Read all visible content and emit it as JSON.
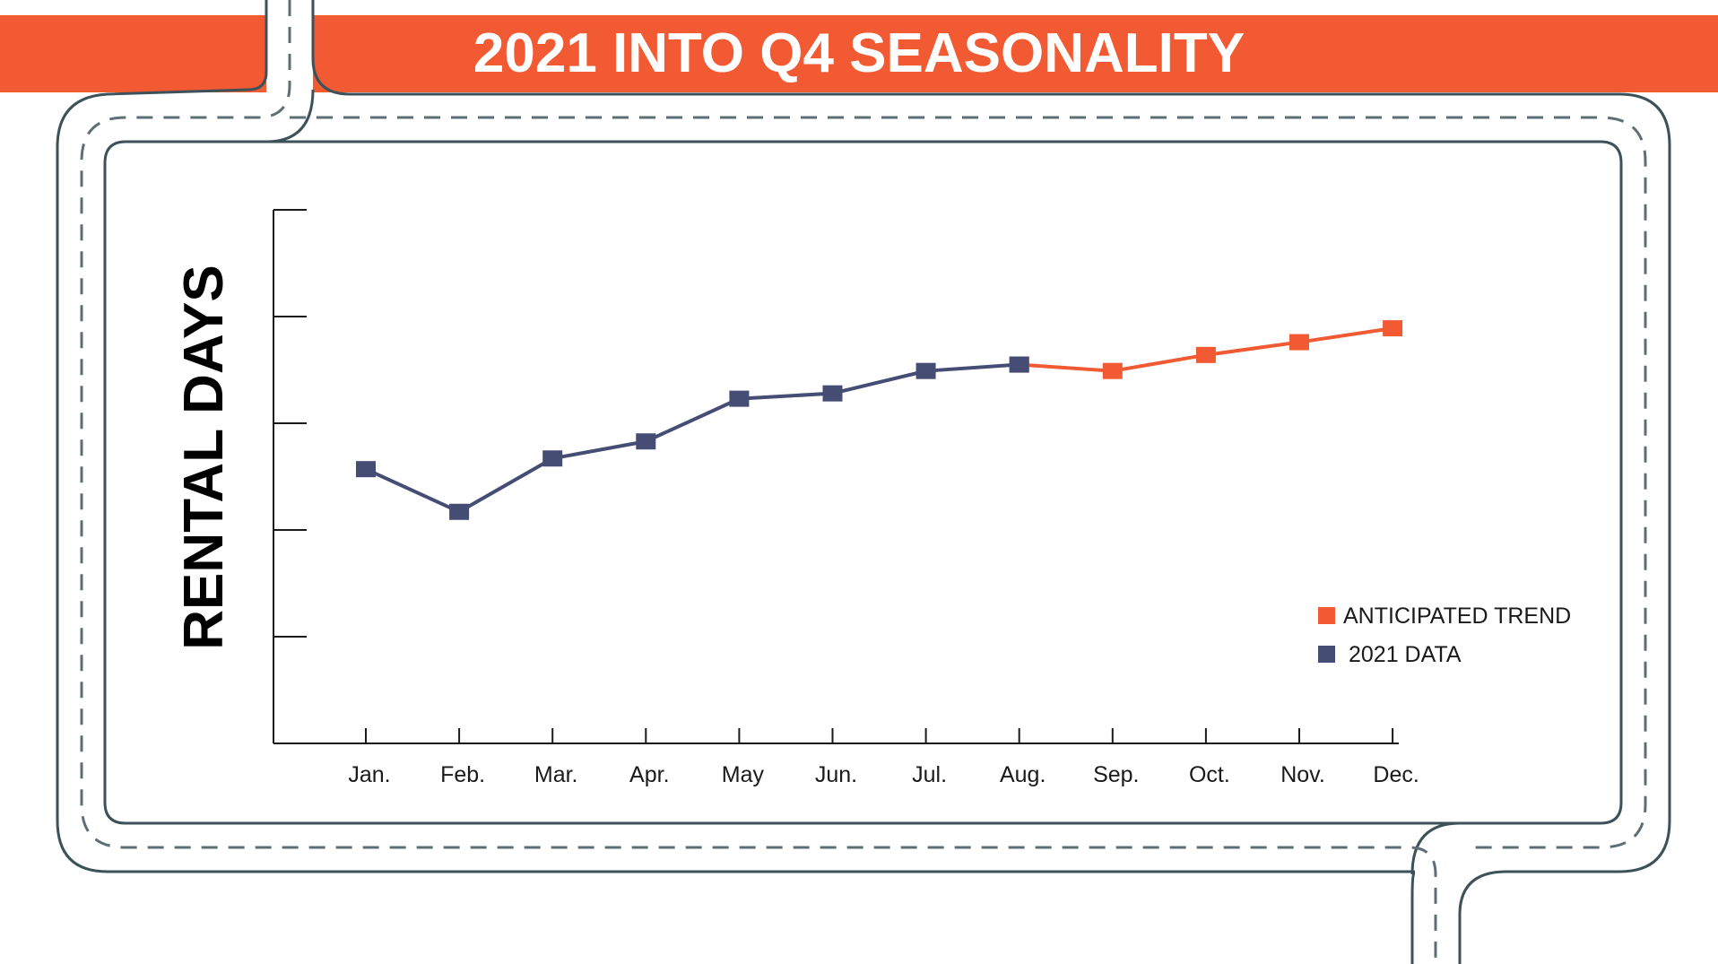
{
  "title": "2021 INTO Q4 SEASONALITY",
  "colors": {
    "accent": "#f15a32",
    "series_2021": "#454d74",
    "road_line": "#3d5258",
    "road_dash": "#5d6f75"
  },
  "chart_data": {
    "type": "line",
    "title": "",
    "xlabel": "",
    "ylabel": "RENTAL DAYS",
    "categories": [
      "Jan.",
      "Feb.",
      "Mar.",
      "Apr.",
      "May",
      "Jun.",
      "Jul.",
      "Aug.",
      "Sep.",
      "Oct.",
      "Nov.",
      "Dec."
    ],
    "ylim": [
      0,
      5
    ],
    "y_ticks": 5,
    "grid": false,
    "legend_position": "bottom-right",
    "series": [
      {
        "name": "2021 DATA",
        "color": "#454d74",
        "points": [
          {
            "x": "Jan.",
            "y": 2.57
          },
          {
            "x": "Feb.",
            "y": 2.17
          },
          {
            "x": "Mar.",
            "y": 2.67
          },
          {
            "x": "Apr.",
            "y": 2.83
          },
          {
            "x": "May",
            "y": 3.23
          },
          {
            "x": "Jun.",
            "y": 3.28
          },
          {
            "x": "Jul.",
            "y": 3.49
          },
          {
            "x": "Aug.",
            "y": 3.55
          }
        ]
      },
      {
        "name": "ANTICIPATED TREND",
        "color": "#f15a32",
        "points": [
          {
            "x": "Aug.",
            "y": 3.55
          },
          {
            "x": "Sep.",
            "y": 3.49
          },
          {
            "x": "Oct.",
            "y": 3.64
          },
          {
            "x": "Nov.",
            "y": 3.76
          },
          {
            "x": "Dec.",
            "y": 3.89
          }
        ]
      }
    ],
    "legend": [
      {
        "label": "ANTICIPATED TREND",
        "color": "#f15a32"
      },
      {
        "label": "2021 DATA",
        "color": "#454d74"
      }
    ]
  }
}
